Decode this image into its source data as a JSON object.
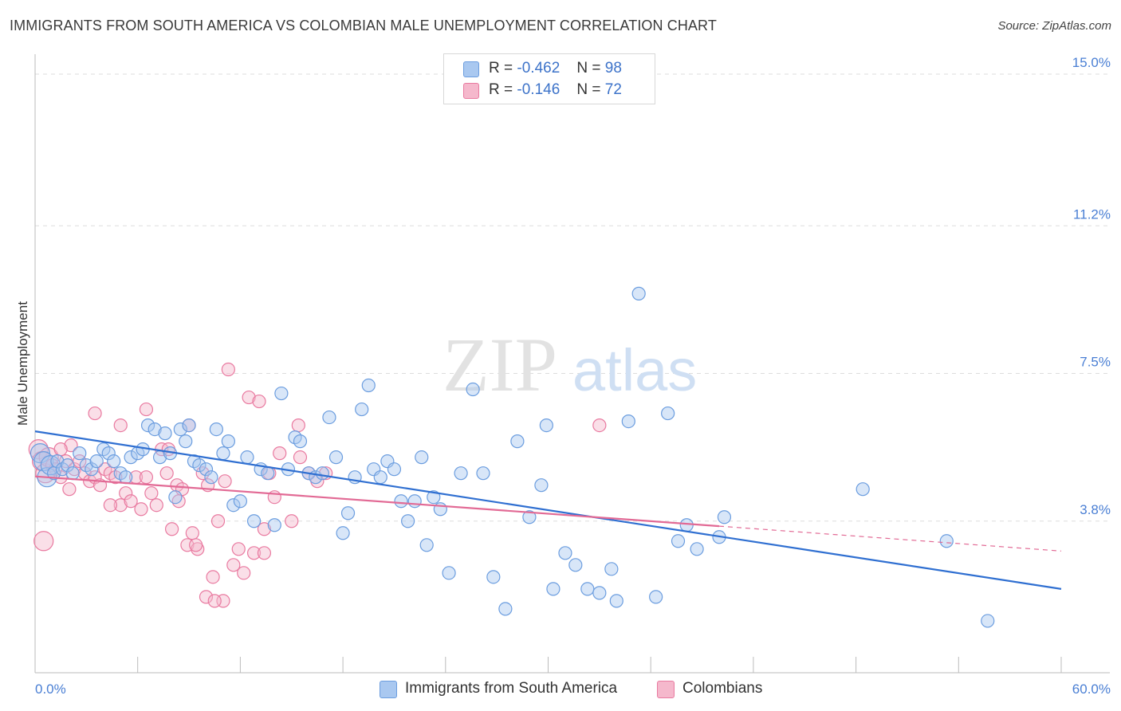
{
  "title": "IMMIGRANTS FROM SOUTH AMERICA VS COLOMBIAN MALE UNEMPLOYMENT CORRELATION CHART",
  "source": "Source: ZipAtlas.com",
  "watermark": {
    "zip": "ZIP",
    "atlas": "atlas"
  },
  "legend": {
    "series1": {
      "r_label": "R =",
      "r_value": "-0.462",
      "n_label": "N =",
      "n_value": "98"
    },
    "series2": {
      "r_label": "R =",
      "r_value": "-0.146",
      "n_label": "N =",
      "n_value": "72"
    }
  },
  "bottom_legend": {
    "series1": "Immigrants from South America",
    "series2": "Colombians"
  },
  "colors": {
    "blue_fill": "#a9c8f0",
    "blue_stroke": "#6b9ddf",
    "blue_line": "#2f6fd1",
    "pink_fill": "#f5b8cc",
    "pink_stroke": "#e97aa0",
    "pink_line": "#e26a95",
    "tick": "#4a7fd4",
    "grid": "#dddddd"
  },
  "chart_data": {
    "type": "scatter",
    "title": "IMMIGRANTS FROM SOUTH AMERICA VS COLOMBIAN MALE UNEMPLOYMENT CORRELATION CHART",
    "xlabel": "",
    "ylabel": "Male Unemployment",
    "xlim": [
      0,
      60
    ],
    "ylim": [
      0,
      15.3
    ],
    "x_tick_labels": [
      "0.0%",
      "60.0%"
    ],
    "y_ticks": [
      {
        "value": 3.8,
        "label": "3.8%"
      },
      {
        "value": 7.5,
        "label": "7.5%"
      },
      {
        "value": 11.2,
        "label": "11.2%"
      },
      {
        "value": 15.0,
        "label": "15.0%"
      }
    ],
    "series": [
      {
        "name": "Immigrants from South America",
        "r": -0.462,
        "n": 98,
        "trend": {
          "x": [
            0,
            60
          ],
          "y": [
            6.05,
            2.1
          ],
          "dashed_from": null
        },
        "points": [
          [
            0.3,
            5.5
          ],
          [
            0.5,
            5.3
          ],
          [
            0.7,
            4.9
          ],
          [
            0.9,
            5.2
          ],
          [
            1.1,
            5.0
          ],
          [
            1.3,
            5.3
          ],
          [
            1.6,
            5.1
          ],
          [
            1.9,
            5.2
          ],
          [
            2.2,
            5.0
          ],
          [
            2.6,
            5.5
          ],
          [
            3.0,
            5.2
          ],
          [
            3.3,
            5.1
          ],
          [
            3.6,
            5.3
          ],
          [
            4.0,
            5.6
          ],
          [
            4.3,
            5.5
          ],
          [
            4.6,
            5.3
          ],
          [
            5.0,
            5.0
          ],
          [
            5.3,
            4.9
          ],
          [
            5.6,
            5.4
          ],
          [
            6.0,
            5.5
          ],
          [
            6.3,
            5.6
          ],
          [
            6.6,
            6.2
          ],
          [
            7.0,
            6.1
          ],
          [
            7.3,
            5.4
          ],
          [
            7.6,
            6.0
          ],
          [
            7.9,
            5.5
          ],
          [
            8.2,
            4.4
          ],
          [
            8.5,
            6.1
          ],
          [
            8.8,
            5.8
          ],
          [
            9.0,
            6.2
          ],
          [
            9.3,
            5.3
          ],
          [
            9.6,
            5.2
          ],
          [
            10.0,
            5.1
          ],
          [
            10.3,
            4.9
          ],
          [
            10.6,
            6.1
          ],
          [
            11.0,
            5.5
          ],
          [
            11.3,
            5.8
          ],
          [
            11.6,
            4.2
          ],
          [
            12.0,
            4.3
          ],
          [
            12.4,
            5.4
          ],
          [
            12.8,
            3.8
          ],
          [
            13.2,
            5.1
          ],
          [
            13.6,
            5.0
          ],
          [
            14.0,
            3.7
          ],
          [
            14.4,
            7.0
          ],
          [
            14.8,
            5.1
          ],
          [
            15.2,
            5.9
          ],
          [
            15.5,
            5.8
          ],
          [
            16.0,
            5.0
          ],
          [
            16.4,
            4.9
          ],
          [
            16.8,
            5.0
          ],
          [
            17.2,
            6.4
          ],
          [
            17.6,
            5.4
          ],
          [
            18.0,
            3.5
          ],
          [
            18.3,
            4.0
          ],
          [
            18.7,
            4.9
          ],
          [
            19.1,
            6.6
          ],
          [
            19.5,
            7.2
          ],
          [
            19.8,
            5.1
          ],
          [
            20.2,
            4.9
          ],
          [
            20.6,
            5.3
          ],
          [
            21.0,
            5.1
          ],
          [
            21.4,
            4.3
          ],
          [
            21.8,
            3.8
          ],
          [
            22.2,
            4.3
          ],
          [
            22.6,
            5.4
          ],
          [
            22.9,
            3.2
          ],
          [
            23.3,
            4.4
          ],
          [
            23.7,
            4.1
          ],
          [
            24.2,
            2.5
          ],
          [
            24.9,
            5.0
          ],
          [
            25.6,
            7.1
          ],
          [
            26.2,
            5.0
          ],
          [
            26.8,
            2.4
          ],
          [
            27.5,
            1.6
          ],
          [
            28.2,
            5.8
          ],
          [
            28.9,
            3.9
          ],
          [
            29.6,
            4.7
          ],
          [
            29.9,
            6.2
          ],
          [
            30.3,
            2.1
          ],
          [
            31.0,
            3.0
          ],
          [
            31.6,
            2.7
          ],
          [
            32.3,
            2.1
          ],
          [
            33.0,
            2.0
          ],
          [
            33.7,
            2.6
          ],
          [
            34.0,
            1.8
          ],
          [
            34.7,
            6.3
          ],
          [
            35.3,
            9.5
          ],
          [
            36.3,
            1.9
          ],
          [
            37.0,
            6.5
          ],
          [
            37.6,
            3.3
          ],
          [
            38.1,
            3.7
          ],
          [
            38.7,
            3.1
          ],
          [
            40.3,
            3.9
          ],
          [
            40.0,
            3.4
          ],
          [
            48.4,
            4.6
          ],
          [
            53.3,
            3.3
          ],
          [
            55.7,
            1.3
          ]
        ]
      },
      {
        "name": "Colombians",
        "r": -0.146,
        "n": 72,
        "trend": {
          "x": [
            0,
            60
          ],
          "y": [
            4.92,
            3.05
          ],
          "dashed_from": 40.0
        },
        "points": [
          [
            0.2,
            5.6
          ],
          [
            0.4,
            5.3
          ],
          [
            0.6,
            5.0
          ],
          [
            0.8,
            5.4
          ],
          [
            1.0,
            5.2
          ],
          [
            1.2,
            5.1
          ],
          [
            1.5,
            4.9
          ],
          [
            1.8,
            5.3
          ],
          [
            2.1,
            5.7
          ],
          [
            2.3,
            5.1
          ],
          [
            2.6,
            5.3
          ],
          [
            2.9,
            5.0
          ],
          [
            3.2,
            4.8
          ],
          [
            3.5,
            4.9
          ],
          [
            3.8,
            4.7
          ],
          [
            4.1,
            5.1
          ],
          [
            4.4,
            5.0
          ],
          [
            4.7,
            4.9
          ],
          [
            5.0,
            4.2
          ],
          [
            5.3,
            4.5
          ],
          [
            5.6,
            4.3
          ],
          [
            5.9,
            4.9
          ],
          [
            6.2,
            4.1
          ],
          [
            6.5,
            4.9
          ],
          [
            6.8,
            4.5
          ],
          [
            7.1,
            4.2
          ],
          [
            7.4,
            5.6
          ],
          [
            7.7,
            5.0
          ],
          [
            8.0,
            3.6
          ],
          [
            8.3,
            4.7
          ],
          [
            8.6,
            4.6
          ],
          [
            8.9,
            3.2
          ],
          [
            9.2,
            3.5
          ],
          [
            9.5,
            3.1
          ],
          [
            9.8,
            5.0
          ],
          [
            10.1,
            4.7
          ],
          [
            10.4,
            2.4
          ],
          [
            10.7,
            3.8
          ],
          [
            11.0,
            1.8
          ],
          [
            11.3,
            7.6
          ],
          [
            11.6,
            2.7
          ],
          [
            11.9,
            3.1
          ],
          [
            12.2,
            2.5
          ],
          [
            12.5,
            6.9
          ],
          [
            12.8,
            3.0
          ],
          [
            13.1,
            6.8
          ],
          [
            13.4,
            3.6
          ],
          [
            13.7,
            5.0
          ],
          [
            14.0,
            4.4
          ],
          [
            14.3,
            5.5
          ],
          [
            15.0,
            3.8
          ],
          [
            15.5,
            5.4
          ],
          [
            16.0,
            5.0
          ],
          [
            16.5,
            4.8
          ],
          [
            17.0,
            5.0
          ],
          [
            0.5,
            3.3
          ],
          [
            1.5,
            5.6
          ],
          [
            6.5,
            6.6
          ],
          [
            3.5,
            6.5
          ],
          [
            5.0,
            6.2
          ],
          [
            7.8,
            5.6
          ],
          [
            8.4,
            4.3
          ],
          [
            9.0,
            6.2
          ],
          [
            10.0,
            1.9
          ],
          [
            10.5,
            1.8
          ],
          [
            11.1,
            4.8
          ],
          [
            13.4,
            3.0
          ],
          [
            15.4,
            6.2
          ],
          [
            33.0,
            6.2
          ],
          [
            9.4,
            3.2
          ],
          [
            2.0,
            4.6
          ],
          [
            4.4,
            4.2
          ]
        ]
      }
    ]
  }
}
